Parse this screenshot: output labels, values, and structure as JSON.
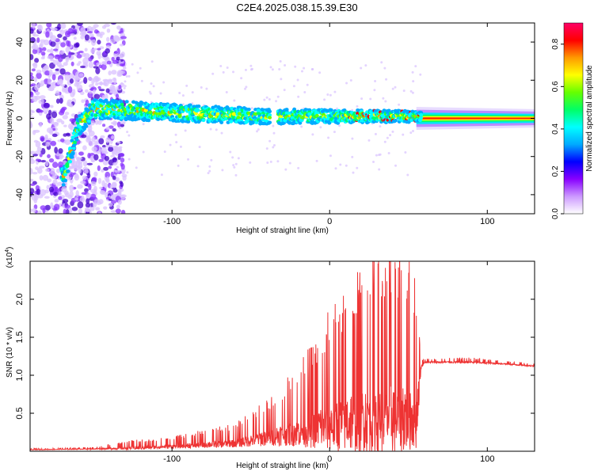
{
  "title": "C2E4.2025.038.15.39.E30",
  "chart_data": [
    {
      "type": "heatmap",
      "xlabel": "Height of straight line (km)",
      "ylabel": "Frequency (Hz)",
      "xlim": [
        -190,
        130
      ],
      "ylim": [
        -50,
        50
      ],
      "xticks": [
        -100,
        0,
        100
      ],
      "xtick_labels": [
        "-100",
        "0",
        "100"
      ],
      "yticks": [
        -40,
        -20,
        0,
        20,
        40
      ],
      "ytick_labels": [
        "-40",
        "-20",
        "0",
        "20",
        "40"
      ],
      "colorbar": {
        "label": "Normalized spectral amplitude",
        "range": [
          0,
          0.9
        ],
        "ticks": [
          0,
          0.2,
          0.4,
          0.6,
          0.8
        ],
        "tick_labels": [
          "0.0",
          "0.2",
          "0.4",
          "0.6",
          "0.8"
        ],
        "colors": [
          "#ffffff",
          "#cc99ff",
          "#8800ff",
          "#0000ff",
          "#00aaff",
          "#00ffff",
          "#00ff66",
          "#66ff00",
          "#ffff00",
          "#ff9900",
          "#ff0000",
          "#ff0066"
        ]
      },
      "features": {
        "band_center_hz": [
          [
            -168,
            -30
          ],
          [
            -160,
            -5
          ],
          [
            -150,
            5
          ],
          [
            -100,
            3
          ],
          [
            -40,
            1
          ],
          [
            50,
            1
          ],
          [
            130,
            0
          ]
        ],
        "band_halfwidth_hz": [
          [
            -150,
            5
          ],
          [
            -40,
            4
          ],
          [
            50,
            3
          ],
          [
            60,
            2
          ],
          [
            130,
            1.5
          ]
        ],
        "scatter_noise_region": [
          -190,
          -140
        ],
        "gap_near": -35
      }
    },
    {
      "type": "line",
      "xlabel": "Height of straight line (km)",
      "ylabel": "SNR (10 * v/v)",
      "multiplier_label": "(x10",
      "multiplier_exp": "4",
      "xlim": [
        -190,
        130
      ],
      "ylim": [
        0,
        2.5
      ],
      "xticks": [
        -100,
        0,
        100
      ],
      "xtick_labels": [
        "-100",
        "0",
        "100"
      ],
      "yticks": [
        0.5,
        1.0,
        1.5,
        2.0
      ],
      "ytick_labels": [
        "0.5",
        "1.0",
        "1.5",
        "2.0"
      ],
      "color": "#ee3333",
      "envelope": {
        "x": [
          -190,
          -150,
          -125,
          -100,
          -80,
          -60,
          -45,
          -30,
          -15,
          0,
          15,
          30,
          45,
          55,
          58,
          60,
          70,
          90,
          110,
          130
        ],
        "base": [
          0.02,
          0.03,
          0.04,
          0.06,
          0.08,
          0.1,
          0.15,
          0.2,
          0.25,
          0.3,
          0.35,
          0.4,
          0.4,
          0.4,
          1.1,
          1.17,
          1.17,
          1.17,
          1.15,
          1.12
        ],
        "amp": [
          0.01,
          0.02,
          0.08,
          0.1,
          0.15,
          0.2,
          0.35,
          0.5,
          0.8,
          1.2,
          1.5,
          1.7,
          1.8,
          1.5,
          0.1,
          0.04,
          0.04,
          0.05,
          0.03,
          0.03
        ]
      }
    }
  ]
}
